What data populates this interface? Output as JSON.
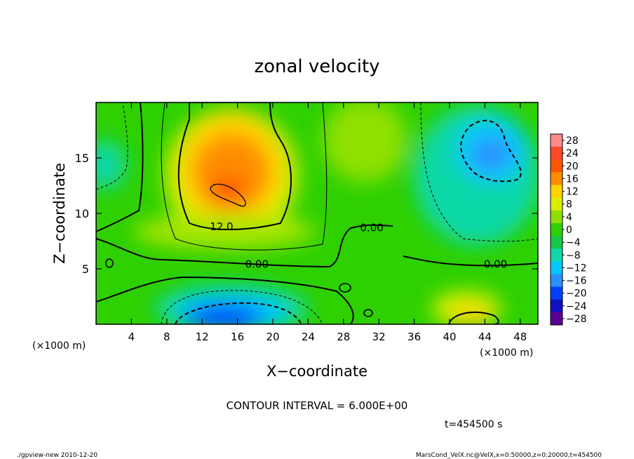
{
  "chart_data": {
    "type": "heatmap",
    "title": "zonal velocity",
    "xlabel": "X−coordinate",
    "ylabel": "Z−coordinate",
    "x_unit_left": "(×1000 m)",
    "x_unit_right": "(×1000 m)",
    "xlim": [
      0,
      50
    ],
    "ylim": [
      0,
      20
    ],
    "x_ticks": [
      4,
      8,
      12,
      16,
      20,
      24,
      28,
      32,
      36,
      40,
      44,
      48
    ],
    "y_ticks": [
      5,
      10,
      15
    ],
    "colorbar": {
      "levels": [
        28,
        24,
        20,
        16,
        12,
        8,
        4,
        0,
        -4,
        -8,
        -12,
        -16,
        -20,
        -24,
        -28
      ],
      "labels": [
        "28",
        "24",
        "20",
        "16",
        "12",
        "8",
        "4",
        "0",
        "−4",
        "−8",
        "−12",
        "−16",
        "−20",
        "−24",
        "−28"
      ],
      "colors": [
        "#ff8a8a",
        "#ff4a2a",
        "#ff5500",
        "#ff8c00",
        "#ffd400",
        "#d8f000",
        "#8fe000",
        "#2ed000",
        "#18c848",
        "#10d8a8",
        "#00c8ff",
        "#2a90ff",
        "#0040ff",
        "#1010c0",
        "#5a0090"
      ]
    },
    "contour_labels": [
      {
        "text": "12.0",
        "x": 14.2,
        "z": 8.8
      },
      {
        "text": "0.00",
        "x": 31.2,
        "z": 8.7
      },
      {
        "text": "0.00",
        "x": 18.2,
        "z": 5.4
      },
      {
        "text": "0.00",
        "x": 45.2,
        "z": 5.4
      }
    ],
    "contour_interval_text": "CONTOUR INTERVAL = 6.000E+00",
    "time_text": "t=454500 s"
  },
  "footer": {
    "left": "./gpview-new   2010-12-20",
    "right": "MarsCond_VelX.nc@VelX,x=0:50000,z=0:20000,t=454500"
  }
}
